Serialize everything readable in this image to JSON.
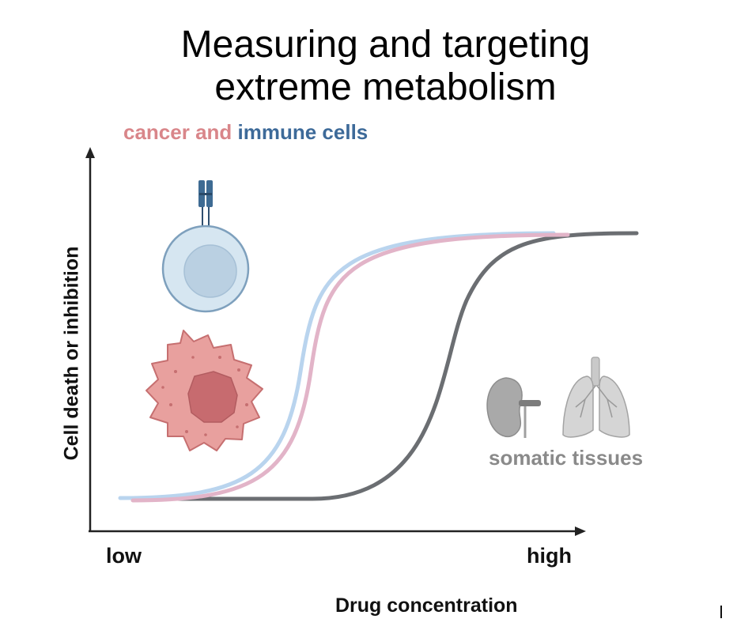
{
  "title": {
    "line1": "Measuring and targeting",
    "line2": "extreme metabolism"
  },
  "subtitle": {
    "part1": "cancer and ",
    "part2": "immune cells"
  },
  "axes": {
    "y_label": "Cell death or inhibition",
    "x_label": "Drug concentration",
    "x_low": "low",
    "x_high": "high"
  },
  "curves": [
    {
      "group": "immune cells",
      "color": "#b9d4ee"
    },
    {
      "group": "cancer cells",
      "color": "#e2b4c8"
    },
    {
      "group": "somatic tissues",
      "color": "#6b6e72"
    }
  ],
  "somatic_label": "somatic tissues",
  "icons": [
    "immune-cell-icon",
    "cancer-cell-icon",
    "kidney-icon",
    "lungs-icon"
  ],
  "colors": {
    "cancer_text": "#d9868a",
    "immune_text": "#3d6a99",
    "somatic_text": "#8a8a8a",
    "axis": "#222222"
  }
}
